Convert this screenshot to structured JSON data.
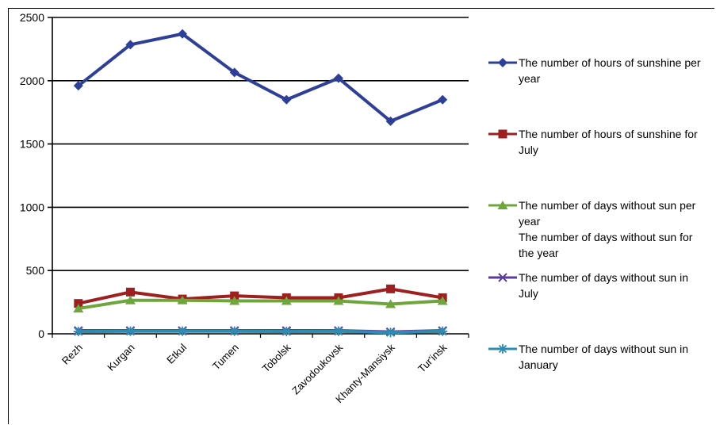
{
  "chart_data": {
    "type": "line",
    "categories": [
      "Rezh",
      "Kurgan",
      "Etkul",
      "Tumen",
      "Tobolsk",
      "Zavodoukovsk",
      "Khanty-Mansiysk",
      "Tur'insk"
    ],
    "ylim": [
      0,
      2500
    ],
    "yticks": [
      0,
      500,
      1000,
      1500,
      2000,
      2500
    ],
    "grid": true,
    "legend": "right",
    "series": [
      {
        "name": "The number of hours of sunshine per year",
        "color": "#2E3F99",
        "marker": "diamond",
        "values": [
          1960,
          2285,
          2370,
          2065,
          1850,
          2020,
          1680,
          1850
        ]
      },
      {
        "name": "The number of hours of sunshine for July",
        "color": "#9E1F1F",
        "marker": "square",
        "values": [
          240,
          330,
          275,
          300,
          285,
          285,
          355,
          285
        ]
      },
      {
        "name": "The number of days without sun per year",
        "color": "#6FA63C",
        "marker": "triangle",
        "values": [
          200,
          265,
          265,
          260,
          260,
          260,
          235,
          260
        ]
      },
      {
        "name": "The number of days without sun for the year",
        "color": "#5A3D99",
        "marker": "x",
        "values": [
          25,
          25,
          25,
          25,
          25,
          25,
          15,
          25
        ]
      },
      {
        "name": "The number of days without sun in July",
        "color": "#5A3D99",
        "marker": "x",
        "values": [
          20,
          22,
          22,
          22,
          20,
          22,
          12,
          22
        ]
      },
      {
        "name": "The number of days without sun in January",
        "color": "#2E8CB0",
        "marker": "star",
        "values": [
          18,
          20,
          20,
          20,
          18,
          20,
          10,
          20
        ]
      }
    ]
  },
  "legend_items": [
    {
      "lines": [
        "The number of hours of sunshine per",
        "year"
      ],
      "series": 0
    },
    {
      "lines": [
        "The number of hours of sunshine for",
        "July"
      ],
      "series": 1
    },
    {
      "lines": [
        "The number of days without sun per",
        "year",
        "The number of days without sun for",
        "the year"
      ],
      "series": 2
    },
    {
      "lines": [
        "The number of days without sun in",
        "July"
      ],
      "series": 4
    },
    {
      "lines": [
        "The number of days without sun in",
        "January"
      ],
      "series": 5
    }
  ]
}
